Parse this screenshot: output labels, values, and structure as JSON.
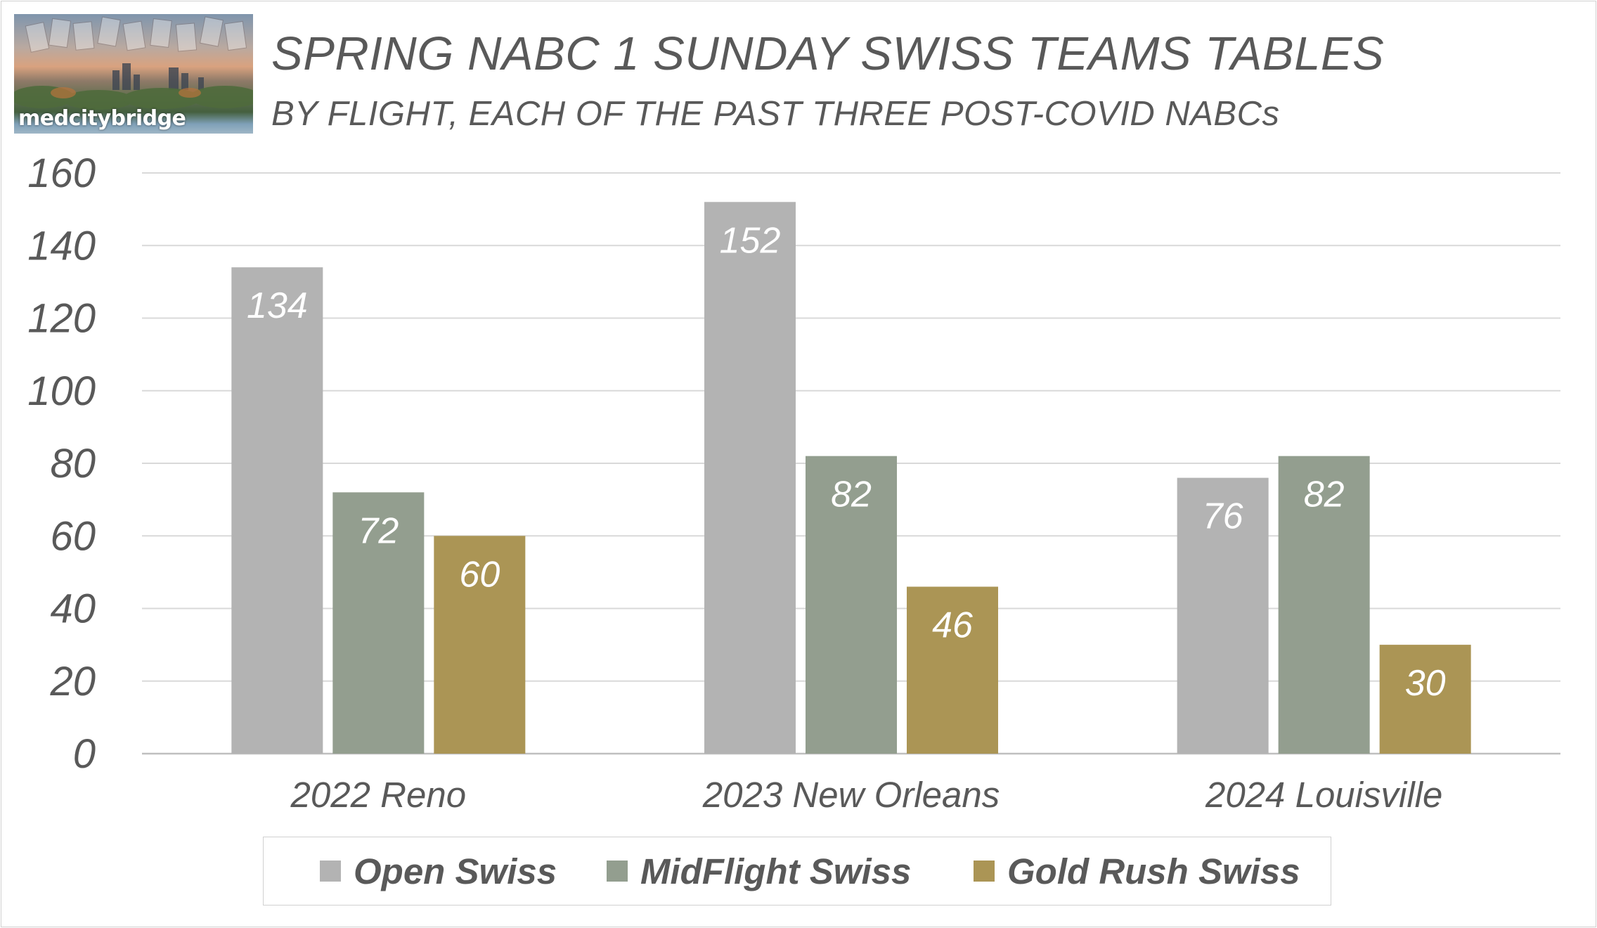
{
  "logo": {
    "text": "medcitybridge"
  },
  "chart_data": {
    "type": "bar",
    "title": "SPRING NABC 1 SUNDAY SWISS TEAMS TABLES",
    "subtitle": "BY FLIGHT, EACH OF THE PAST THREE POST-COVID NABCs",
    "categories": [
      "2022 Reno",
      "2023 New Orleans",
      "2024 Louisville"
    ],
    "series": [
      {
        "name": "Open Swiss",
        "color": "#b3b3b3",
        "values": [
          134,
          152,
          76
        ]
      },
      {
        "name": "MidFlight Swiss",
        "color": "#939e8f",
        "values": [
          72,
          82,
          82
        ]
      },
      {
        "name": "Gold Rush Swiss",
        "color": "#ab9555",
        "values": [
          60,
          46,
          30
        ]
      }
    ],
    "ylim": [
      0,
      160
    ],
    "yticks": [
      0,
      20,
      40,
      60,
      80,
      100,
      120,
      140,
      160
    ],
    "grid": true,
    "legend_position": "bottom",
    "data_labels": true,
    "xlabel": "",
    "ylabel": ""
  }
}
